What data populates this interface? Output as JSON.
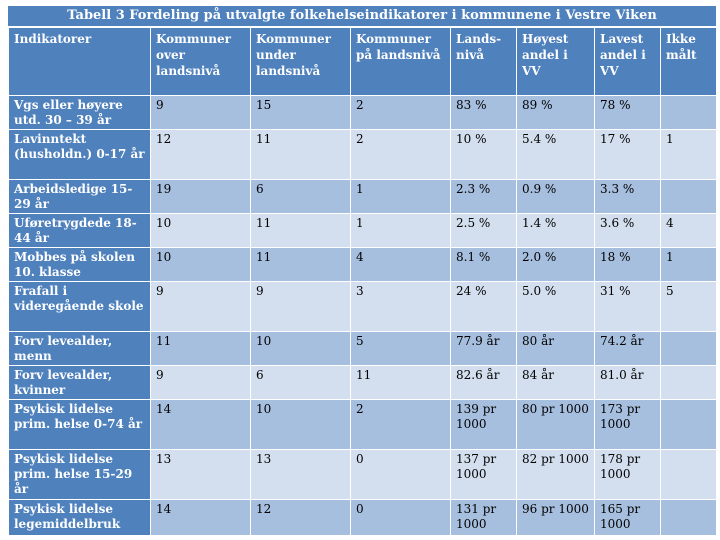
{
  "title": "Tabell 3 Fordeling på utvalgte folkehelseindikatorer i kommunene i Vestre Viken",
  "headers": [
    "Indikatorer",
    "Kommuner over landsnivå",
    "Kommuner under landsnivå",
    "Kommuner på landsnivå",
    "Lands-nivå",
    "Høyest andel i VV",
    "Lavest andel i VV",
    "Ikke målt"
  ],
  "rows": [
    [
      "Vgs eller høyere utd. 30 – 39 år",
      "9",
      "15",
      "2",
      "83 %",
      "89 %",
      "78 %",
      ""
    ],
    [
      "Lavinntekt (husholdn.) 0-17 år",
      "12",
      "11",
      "2",
      "10 %",
      "5.4 %",
      "17 %",
      "1"
    ],
    [
      "Arbeidsledige 15-29 år",
      "19",
      "6",
      "1",
      "2.3 %",
      "0.9 %",
      "3.3 %",
      ""
    ],
    [
      "Uføretrygdede 18-44 år",
      "10",
      "11",
      "1",
      "2.5 %",
      "1.4 %",
      "3.6 %",
      "4"
    ],
    [
      "Mobbes på skolen 10. klasse",
      "10",
      "11",
      "4",
      "8.1 %",
      "2.0 %",
      "18 %",
      "1"
    ],
    [
      "Frafall i videregående skole",
      "9",
      "9",
      "3",
      "24 %",
      "5.0 %",
      "31 %",
      "5"
    ],
    [
      "Forv levealder, menn",
      "11",
      "10",
      "5",
      "77.9 år",
      "80 år",
      "74.2 år",
      ""
    ],
    [
      "Forv levealder, kvinner",
      "9",
      "6",
      "11",
      "82.6 år",
      "84 år",
      "81.0 år",
      ""
    ],
    [
      "Psykisk lidelse prim. helse 0-74 år",
      "14",
      "10",
      "2",
      "139 pr 1000",
      "80 pr 1000",
      "173 pr 1000",
      ""
    ],
    [
      "Psykisk lidelse prim. helse 15-29 år",
      "13",
      "13",
      "0",
      "137 pr 1000",
      "82 pr 1000",
      "178 pr 1000",
      ""
    ],
    [
      "Psykisk lidelse legemiddelbruk",
      "14",
      "12",
      "0",
      "131 pr 1000",
      "96 pr 1000",
      "165 pr 1000",
      ""
    ]
  ],
  "colors": {
    "header": "#4f81bd",
    "band_dark": "#a7bfde",
    "band_light": "#d3dfee"
  }
}
